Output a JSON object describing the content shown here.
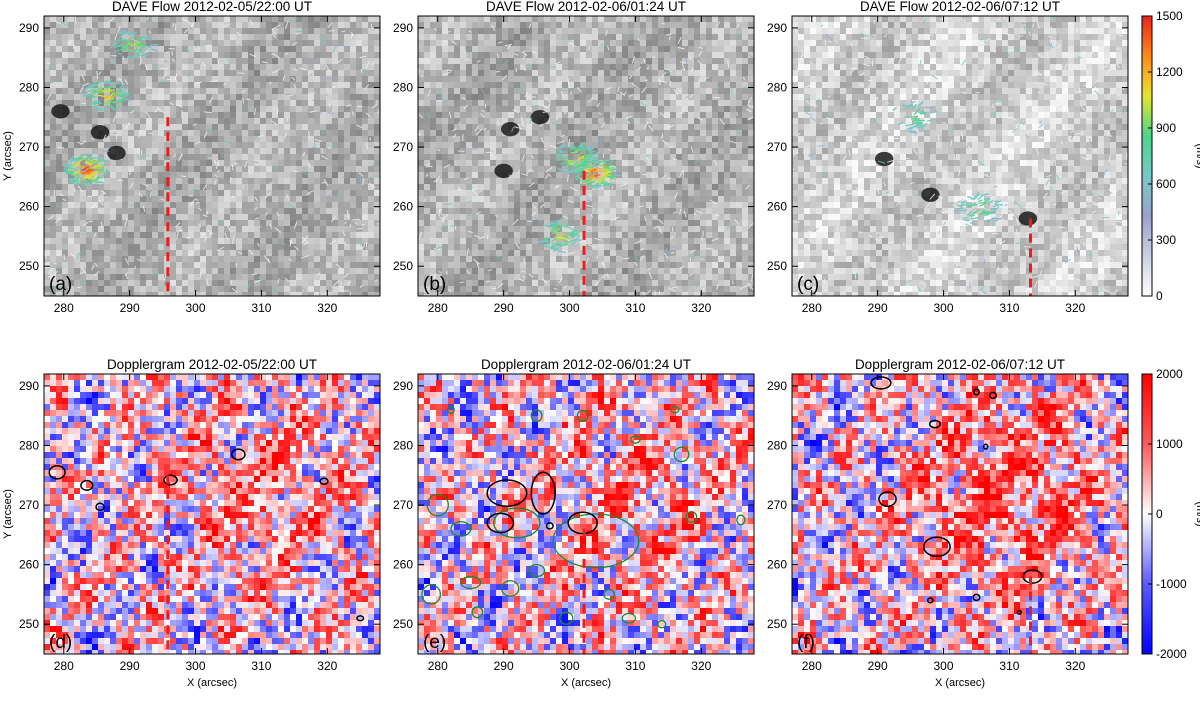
{
  "chart_data": [
    {
      "panel": "(a)",
      "type": "heatmap",
      "title": "DAVE Flow 2012-02-05/22:00 UT",
      "xlabel": "",
      "ylabel": "Y (arcsec)",
      "xlim": [
        277,
        328
      ],
      "ylim": [
        245,
        292
      ],
      "xticks": [
        280,
        290,
        300,
        310,
        320
      ],
      "yticks": [
        250,
        260,
        270,
        280,
        290
      ],
      "dashed_line_x": 295.8,
      "dashed_line_y_top": 275,
      "flow_hotspots": [
        {
          "x": 283,
          "y": 266,
          "speed": 1500
        },
        {
          "x": 286,
          "y": 278.5,
          "speed": 1100
        },
        {
          "x": 290,
          "y": 287,
          "speed": 800
        }
      ],
      "dark_spots": [
        {
          "x": 279.5,
          "y": 276
        },
        {
          "x": 285.5,
          "y": 272.5
        },
        {
          "x": 288,
          "y": 269
        }
      ]
    },
    {
      "panel": "(b)",
      "type": "heatmap",
      "title": "DAVE Flow 2012-02-06/01:24 UT",
      "xlabel": "",
      "ylabel": "",
      "xlim": [
        277,
        328
      ],
      "ylim": [
        245,
        292
      ],
      "xticks": [
        280,
        290,
        300,
        310,
        320
      ],
      "yticks": [
        250,
        260,
        270,
        280,
        290
      ],
      "dashed_line_x": 302.2,
      "dashed_line_y_top": 266,
      "flow_hotspots": [
        {
          "x": 303.5,
          "y": 265.5,
          "speed": 1500
        },
        {
          "x": 300.5,
          "y": 268,
          "speed": 1000
        },
        {
          "x": 298,
          "y": 255,
          "speed": 900
        }
      ],
      "dark_spots": [
        {
          "x": 291,
          "y": 273
        },
        {
          "x": 290,
          "y": 266
        },
        {
          "x": 295.5,
          "y": 275
        }
      ]
    },
    {
      "panel": "(c)",
      "type": "heatmap",
      "title": "DAVE Flow 2012-02-06/07:12 UT",
      "xlabel": "",
      "ylabel": "",
      "xlim": [
        277,
        328
      ],
      "ylim": [
        245,
        292
      ],
      "xticks": [
        280,
        290,
        300,
        310,
        320
      ],
      "yticks": [
        250,
        260,
        270,
        280,
        290
      ],
      "dashed_line_x": 313.2,
      "dashed_line_y_top": 258,
      "flow_hotspots": [
        {
          "x": 305,
          "y": 259.5,
          "speed": 700
        },
        {
          "x": 295,
          "y": 275,
          "speed": 600
        }
      ],
      "dark_spots": [
        {
          "x": 298,
          "y": 262
        },
        {
          "x": 312.8,
          "y": 258
        },
        {
          "x": 291,
          "y": 268
        }
      ]
    },
    {
      "panel": "(d)",
      "type": "heatmap",
      "title": "Dopplergram 2012-02-05/22:00 UT",
      "xlabel": "X (arcsec)",
      "ylabel": "Y (arcsec)",
      "xlim": [
        277,
        328
      ],
      "ylim": [
        245,
        292
      ],
      "xticks": [
        280,
        290,
        300,
        310,
        320
      ],
      "yticks": [
        250,
        260,
        270,
        280,
        290
      ],
      "dashed_line_x": 295.8,
      "dashed_line_y_top": 275,
      "black_contours": [
        {
          "x": 279,
          "y": 275.5,
          "rx": 1.2,
          "ry": 1.1
        },
        {
          "x": 283.5,
          "y": 273.3,
          "rx": 0.9,
          "ry": 0.8
        },
        {
          "x": 285.5,
          "y": 269.7,
          "rx": 0.6,
          "ry": 0.6
        },
        {
          "x": 296.2,
          "y": 274.2,
          "rx": 1.0,
          "ry": 0.8
        },
        {
          "x": 306.5,
          "y": 278.5,
          "rx": 1.0,
          "ry": 0.9
        },
        {
          "x": 319.5,
          "y": 274,
          "rx": 0.6,
          "ry": 0.5
        },
        {
          "x": 325,
          "y": 251,
          "rx": 0.5,
          "ry": 0.4
        }
      ],
      "green_contours": []
    },
    {
      "panel": "(e)",
      "type": "heatmap",
      "title": "Dopplergram 2012-02-06/01:24 UT",
      "xlabel": "X (arcsec)",
      "ylabel": "",
      "xlim": [
        277,
        328
      ],
      "ylim": [
        245,
        292
      ],
      "xticks": [
        280,
        290,
        300,
        310,
        320
      ],
      "yticks": [
        250,
        260,
        270,
        280,
        290
      ],
      "dashed_line_x": 302.2,
      "dashed_line_y_top": 266,
      "black_contours": [
        {
          "x": 290.5,
          "y": 272,
          "rx": 3.0,
          "ry": 2.2
        },
        {
          "x": 289.5,
          "y": 267,
          "rx": 2.0,
          "ry": 1.6
        },
        {
          "x": 296,
          "y": 272,
          "rx": 1.8,
          "ry": 3.5
        },
        {
          "x": 302,
          "y": 267,
          "rx": 2.2,
          "ry": 1.8
        },
        {
          "x": 297,
          "y": 266.5,
          "rx": 0.5,
          "ry": 0.5
        }
      ],
      "green_contours": [
        {
          "x": 304,
          "y": 264,
          "rx": 6.5,
          "ry": 4.5
        },
        {
          "x": 292,
          "y": 267,
          "rx": 3.5,
          "ry": 2.5
        },
        {
          "x": 283.5,
          "y": 266,
          "rx": 1.5,
          "ry": 1.2
        },
        {
          "x": 280,
          "y": 270,
          "rx": 1.6,
          "ry": 1.8
        },
        {
          "x": 279,
          "y": 255,
          "rx": 1.4,
          "ry": 1.6
        },
        {
          "x": 285,
          "y": 257,
          "rx": 1.5,
          "ry": 1.0
        },
        {
          "x": 291,
          "y": 256,
          "rx": 1.3,
          "ry": 1.3
        },
        {
          "x": 295,
          "y": 259,
          "rx": 1.2,
          "ry": 1.0
        },
        {
          "x": 299.5,
          "y": 251,
          "rx": 1.0,
          "ry": 1.0
        },
        {
          "x": 306,
          "y": 255,
          "rx": 0.8,
          "ry": 0.8
        },
        {
          "x": 309,
          "y": 251,
          "rx": 1.0,
          "ry": 0.8
        },
        {
          "x": 317,
          "y": 278.5,
          "rx": 1.1,
          "ry": 1.2
        },
        {
          "x": 318.5,
          "y": 268,
          "rx": 0.8,
          "ry": 0.9
        },
        {
          "x": 326,
          "y": 267.5,
          "rx": 0.6,
          "ry": 0.8
        },
        {
          "x": 282,
          "y": 286,
          "rx": 0.5,
          "ry": 0.6
        },
        {
          "x": 295,
          "y": 285,
          "rx": 0.8,
          "ry": 1.0
        },
        {
          "x": 302,
          "y": 285,
          "rx": 0.8,
          "ry": 0.9
        },
        {
          "x": 316,
          "y": 286,
          "rx": 0.6,
          "ry": 0.5
        },
        {
          "x": 310,
          "y": 281,
          "rx": 0.7,
          "ry": 0.6
        },
        {
          "x": 286,
          "y": 252,
          "rx": 0.8,
          "ry": 0.9
        },
        {
          "x": 314,
          "y": 250,
          "rx": 0.6,
          "ry": 0.6
        }
      ]
    },
    {
      "panel": "(f)",
      "type": "heatmap",
      "title": "Dopplergram 2012-02-06/07:12 UT",
      "xlabel": "X (arcsec)",
      "ylabel": "",
      "xlim": [
        277,
        328
      ],
      "ylim": [
        245,
        292
      ],
      "xticks": [
        280,
        290,
        300,
        310,
        320
      ],
      "yticks": [
        250,
        260,
        270,
        280,
        290
      ],
      "dashed_line_x": 313.2,
      "dashed_line_y_top": 258,
      "black_contours": [
        {
          "x": 290.5,
          "y": 290.5,
          "rx": 1.5,
          "ry": 1.0
        },
        {
          "x": 298.7,
          "y": 283.6,
          "rx": 0.8,
          "ry": 0.6
        },
        {
          "x": 305,
          "y": 289,
          "rx": 0.4,
          "ry": 0.5
        },
        {
          "x": 307.5,
          "y": 288.4,
          "rx": 0.5,
          "ry": 0.5
        },
        {
          "x": 306.4,
          "y": 279.8,
          "rx": 0.3,
          "ry": 0.4
        },
        {
          "x": 291.5,
          "y": 271,
          "rx": 1.3,
          "ry": 1.2
        },
        {
          "x": 299,
          "y": 263,
          "rx": 2.0,
          "ry": 1.6
        },
        {
          "x": 313.5,
          "y": 258,
          "rx": 1.4,
          "ry": 1.1
        },
        {
          "x": 305,
          "y": 254.5,
          "rx": 0.5,
          "ry": 0.5
        },
        {
          "x": 298,
          "y": 254,
          "rx": 0.4,
          "ry": 0.4
        },
        {
          "x": 311.5,
          "y": 252,
          "rx": 0.3,
          "ry": 0.3
        }
      ],
      "green_contours": []
    }
  ],
  "colorbars": [
    {
      "label": "(m/s)",
      "min": 0,
      "max": 1500,
      "ticks": [
        0,
        300,
        600,
        900,
        1200,
        1500
      ],
      "colors": [
        "#ffffff",
        "#cccfe2",
        "#9aa2cc",
        "#78c9c7",
        "#4cd58a",
        "#e6e52f",
        "#ff8a1a",
        "#e8251c"
      ]
    },
    {
      "label": "(m/s)",
      "min": -2000,
      "max": 2000,
      "ticks": [
        -2000,
        -1000,
        0,
        1000,
        2000
      ],
      "colors": [
        "#0000ff",
        "#5a5aff",
        "#ffffff",
        "#ff5a5a",
        "#ff0000"
      ]
    }
  ]
}
